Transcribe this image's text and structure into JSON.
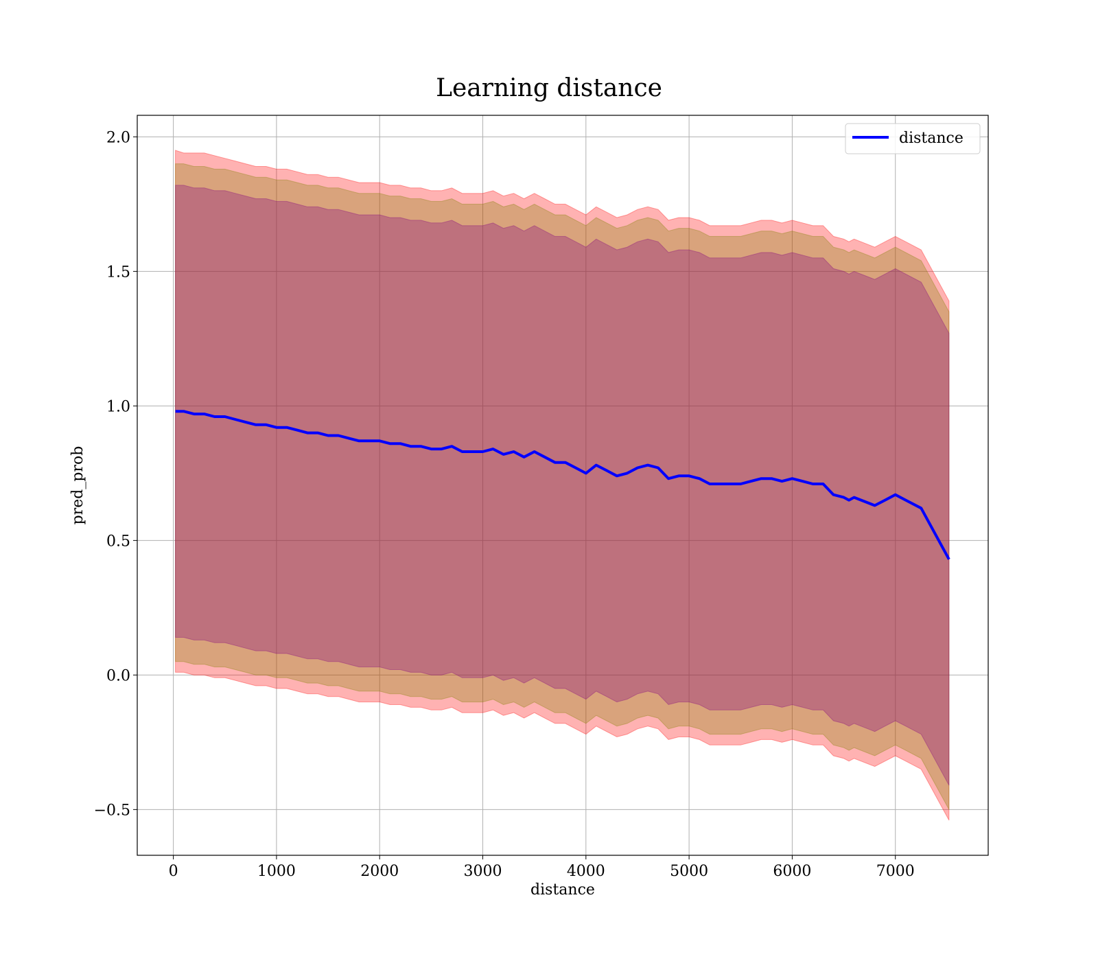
{
  "chart_data": {
    "type": "line",
    "title": "Learning distance",
    "xlabel": "distance",
    "ylabel": "pred_prob",
    "xlim": [
      -350,
      7900
    ],
    "ylim": [
      -0.67,
      2.08
    ],
    "xticks": [
      0,
      1000,
      2000,
      3000,
      4000,
      5000,
      6000,
      7000
    ],
    "yticks": [
      -0.5,
      0.0,
      0.5,
      1.0,
      1.5,
      2.0
    ],
    "xtick_labels": [
      "0",
      "1000",
      "2000",
      "3000",
      "4000",
      "5000",
      "6000",
      "7000"
    ],
    "ytick_labels": [
      "−0.5",
      "0.0",
      "0.5",
      "1.0",
      "1.5",
      "2.0"
    ],
    "grid": true,
    "legend_position": "top-right",
    "series": [
      {
        "name": "distance",
        "color": "#0000ff",
        "x": [
          20,
          100,
          200,
          300,
          400,
          500,
          600,
          700,
          800,
          900,
          1000,
          1100,
          1200,
          1300,
          1400,
          1500,
          1600,
          1700,
          1800,
          1900,
          2000,
          2100,
          2200,
          2300,
          2400,
          2500,
          2600,
          2700,
          2800,
          2900,
          3000,
          3100,
          3200,
          3300,
          3400,
          3500,
          3600,
          3700,
          3800,
          3900,
          4000,
          4100,
          4200,
          4300,
          4400,
          4500,
          4600,
          4700,
          4800,
          4900,
          5000,
          5100,
          5200,
          5300,
          5400,
          5500,
          5600,
          5700,
          5800,
          5900,
          6000,
          6100,
          6200,
          6300,
          6400,
          6500,
          6550,
          6600,
          6800,
          6900,
          7000,
          7100,
          7250,
          7520
        ],
        "y": [
          0.98,
          0.98,
          0.97,
          0.97,
          0.96,
          0.96,
          0.95,
          0.94,
          0.93,
          0.93,
          0.92,
          0.92,
          0.91,
          0.9,
          0.9,
          0.89,
          0.89,
          0.88,
          0.87,
          0.87,
          0.87,
          0.86,
          0.86,
          0.85,
          0.85,
          0.84,
          0.84,
          0.85,
          0.83,
          0.83,
          0.83,
          0.84,
          0.82,
          0.83,
          0.81,
          0.83,
          0.81,
          0.79,
          0.79,
          0.77,
          0.75,
          0.78,
          0.76,
          0.74,
          0.75,
          0.77,
          0.78,
          0.77,
          0.73,
          0.74,
          0.74,
          0.73,
          0.71,
          0.71,
          0.71,
          0.71,
          0.72,
          0.73,
          0.73,
          0.72,
          0.73,
          0.72,
          0.71,
          0.71,
          0.67,
          0.66,
          0.65,
          0.66,
          0.63,
          0.65,
          0.67,
          0.65,
          0.62,
          0.43
        ]
      }
    ],
    "bands": [
      {
        "color": "#ff0000",
        "opacity": 0.3,
        "upper": [
          1.95,
          1.94,
          1.94,
          1.94,
          1.93,
          1.92,
          1.91,
          1.9,
          1.89,
          1.89,
          1.88,
          1.88,
          1.87,
          1.86,
          1.86,
          1.85,
          1.85,
          1.84,
          1.83,
          1.83,
          1.83,
          1.82,
          1.82,
          1.81,
          1.81,
          1.8,
          1.8,
          1.81,
          1.79,
          1.79,
          1.79,
          1.8,
          1.78,
          1.79,
          1.77,
          1.79,
          1.77,
          1.75,
          1.75,
          1.73,
          1.71,
          1.74,
          1.72,
          1.7,
          1.71,
          1.73,
          1.74,
          1.73,
          1.69,
          1.7,
          1.7,
          1.69,
          1.67,
          1.67,
          1.67,
          1.67,
          1.68,
          1.69,
          1.69,
          1.68,
          1.69,
          1.68,
          1.67,
          1.67,
          1.63,
          1.62,
          1.61,
          1.62,
          1.59,
          1.61,
          1.63,
          1.61,
          1.58,
          1.39
        ],
        "lower": [
          0.01,
          0.01,
          0.0,
          0.0,
          -0.01,
          -0.01,
          -0.02,
          -0.03,
          -0.04,
          -0.04,
          -0.05,
          -0.05,
          -0.06,
          -0.07,
          -0.07,
          -0.08,
          -0.08,
          -0.09,
          -0.1,
          -0.1,
          -0.1,
          -0.11,
          -0.11,
          -0.12,
          -0.12,
          -0.13,
          -0.13,
          -0.12,
          -0.14,
          -0.14,
          -0.14,
          -0.13,
          -0.15,
          -0.14,
          -0.16,
          -0.14,
          -0.16,
          -0.18,
          -0.18,
          -0.2,
          -0.22,
          -0.19,
          -0.21,
          -0.23,
          -0.22,
          -0.2,
          -0.19,
          -0.2,
          -0.24,
          -0.23,
          -0.23,
          -0.24,
          -0.26,
          -0.26,
          -0.26,
          -0.26,
          -0.25,
          -0.24,
          -0.24,
          -0.25,
          -0.24,
          -0.25,
          -0.26,
          -0.26,
          -0.3,
          -0.31,
          -0.32,
          -0.31,
          -0.34,
          -0.32,
          -0.3,
          -0.32,
          -0.35,
          -0.54
        ]
      },
      {
        "color": "#808000",
        "opacity": 0.3,
        "upper": [
          1.9,
          1.9,
          1.89,
          1.89,
          1.88,
          1.88,
          1.87,
          1.86,
          1.85,
          1.85,
          1.84,
          1.84,
          1.83,
          1.82,
          1.82,
          1.81,
          1.81,
          1.8,
          1.79,
          1.79,
          1.79,
          1.78,
          1.78,
          1.77,
          1.77,
          1.76,
          1.76,
          1.77,
          1.75,
          1.75,
          1.75,
          1.76,
          1.74,
          1.75,
          1.73,
          1.75,
          1.73,
          1.71,
          1.71,
          1.69,
          1.67,
          1.7,
          1.68,
          1.66,
          1.67,
          1.69,
          1.7,
          1.69,
          1.65,
          1.66,
          1.66,
          1.65,
          1.63,
          1.63,
          1.63,
          1.63,
          1.64,
          1.65,
          1.65,
          1.64,
          1.65,
          1.64,
          1.63,
          1.63,
          1.59,
          1.58,
          1.57,
          1.58,
          1.55,
          1.57,
          1.59,
          1.57,
          1.54,
          1.35
        ],
        "lower": [
          0.05,
          0.05,
          0.04,
          0.04,
          0.03,
          0.03,
          0.02,
          0.01,
          0.0,
          0.0,
          -0.01,
          -0.01,
          -0.02,
          -0.03,
          -0.03,
          -0.04,
          -0.04,
          -0.05,
          -0.06,
          -0.06,
          -0.06,
          -0.07,
          -0.07,
          -0.08,
          -0.08,
          -0.09,
          -0.09,
          -0.08,
          -0.1,
          -0.1,
          -0.1,
          -0.09,
          -0.11,
          -0.1,
          -0.12,
          -0.1,
          -0.12,
          -0.14,
          -0.14,
          -0.16,
          -0.18,
          -0.15,
          -0.17,
          -0.19,
          -0.18,
          -0.16,
          -0.15,
          -0.16,
          -0.2,
          -0.19,
          -0.19,
          -0.2,
          -0.22,
          -0.22,
          -0.22,
          -0.22,
          -0.21,
          -0.2,
          -0.2,
          -0.21,
          -0.2,
          -0.21,
          -0.22,
          -0.22,
          -0.26,
          -0.27,
          -0.28,
          -0.27,
          -0.3,
          -0.28,
          -0.26,
          -0.28,
          -0.31,
          -0.5
        ]
      },
      {
        "color": "#800080",
        "opacity": 0.3,
        "upper": [
          1.82,
          1.82,
          1.81,
          1.81,
          1.8,
          1.8,
          1.79,
          1.78,
          1.77,
          1.77,
          1.76,
          1.76,
          1.75,
          1.74,
          1.74,
          1.73,
          1.73,
          1.72,
          1.71,
          1.71,
          1.71,
          1.7,
          1.7,
          1.69,
          1.69,
          1.68,
          1.68,
          1.69,
          1.67,
          1.67,
          1.67,
          1.68,
          1.66,
          1.67,
          1.65,
          1.67,
          1.65,
          1.63,
          1.63,
          1.61,
          1.59,
          1.62,
          1.6,
          1.58,
          1.59,
          1.61,
          1.62,
          1.61,
          1.57,
          1.58,
          1.58,
          1.57,
          1.55,
          1.55,
          1.55,
          1.55,
          1.56,
          1.57,
          1.57,
          1.56,
          1.57,
          1.56,
          1.55,
          1.55,
          1.51,
          1.5,
          1.49,
          1.5,
          1.47,
          1.49,
          1.51,
          1.49,
          1.46,
          1.27
        ],
        "lower": [
          0.14,
          0.14,
          0.13,
          0.13,
          0.12,
          0.12,
          0.11,
          0.1,
          0.09,
          0.09,
          0.08,
          0.08,
          0.07,
          0.06,
          0.06,
          0.05,
          0.05,
          0.04,
          0.03,
          0.03,
          0.03,
          0.02,
          0.02,
          0.01,
          0.01,
          0.0,
          0.0,
          0.01,
          -0.01,
          -0.01,
          -0.01,
          0.0,
          -0.02,
          -0.01,
          -0.03,
          -0.01,
          -0.03,
          -0.05,
          -0.05,
          -0.07,
          -0.09,
          -0.06,
          -0.08,
          -0.1,
          -0.09,
          -0.07,
          -0.06,
          -0.07,
          -0.11,
          -0.1,
          -0.1,
          -0.11,
          -0.13,
          -0.13,
          -0.13,
          -0.13,
          -0.12,
          -0.11,
          -0.11,
          -0.12,
          -0.11,
          -0.12,
          -0.13,
          -0.13,
          -0.17,
          -0.18,
          -0.19,
          -0.18,
          -0.21,
          -0.19,
          -0.17,
          -0.19,
          -0.22,
          -0.41
        ]
      }
    ]
  }
}
